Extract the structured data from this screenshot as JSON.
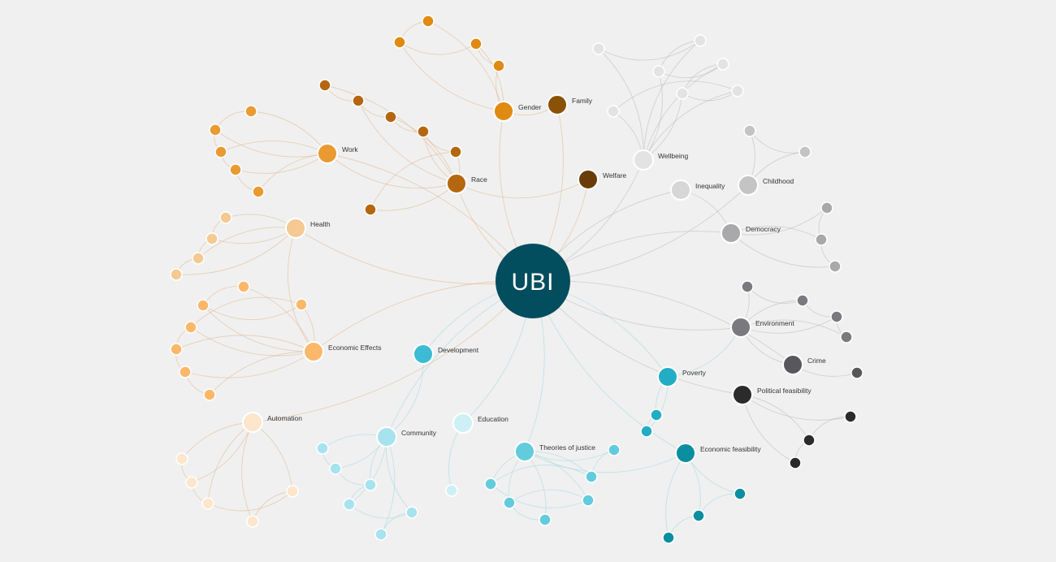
{
  "center": {
    "label": "UBI",
    "color": "#034e5e"
  },
  "nodes": [
    {
      "id": "family",
      "label": "Family",
      "color": "#8a5206"
    },
    {
      "id": "gender",
      "label": "Gender",
      "color": "#e08a12"
    },
    {
      "id": "work",
      "label": "Work",
      "color": "#ea9a32"
    },
    {
      "id": "race",
      "label": "Race",
      "color": "#b5670f"
    },
    {
      "id": "welfare",
      "label": "Welfare",
      "color": "#6a3c0a"
    },
    {
      "id": "health",
      "label": "Health",
      "color": "#f4c992"
    },
    {
      "id": "economic-effects",
      "label": "Economic Effects",
      "color": "#fbb86a"
    },
    {
      "id": "automation",
      "label": "Automation",
      "color": "#fde6cc"
    },
    {
      "id": "development",
      "label": "Development",
      "color": "#3cbcd4"
    },
    {
      "id": "education",
      "label": "Education",
      "color": "#ccf0f5"
    },
    {
      "id": "community",
      "label": "Community",
      "color": "#a6e3ee"
    },
    {
      "id": "theories-of-justice",
      "label": "Theories of justice",
      "color": "#62ccdc"
    },
    {
      "id": "economic-feasibility",
      "label": "Economic feasibility",
      "color": "#0b8ea0"
    },
    {
      "id": "poverty",
      "label": "Poverty",
      "color": "#22adc4"
    },
    {
      "id": "political-feasibility",
      "label": "Political feasibility",
      "color": "#2b2b2b"
    },
    {
      "id": "crime",
      "label": "Crime",
      "color": "#58585c"
    },
    {
      "id": "environment",
      "label": "Environment",
      "color": "#7a7a7e"
    },
    {
      "id": "democracy",
      "label": "Democracy",
      "color": "#a9a9ab"
    },
    {
      "id": "childhood",
      "label": "Childhood",
      "color": "#c4c4c4"
    },
    {
      "id": "inequality",
      "label": "Inequality",
      "color": "#d6d6d6"
    },
    {
      "id": "wellbeing",
      "label": "Wellbeing",
      "color": "#e3e3e3"
    }
  ],
  "edge_colors": {
    "warm": "#e0b48a",
    "cool": "#9ed6e0",
    "grey": "#b8b8b8"
  }
}
